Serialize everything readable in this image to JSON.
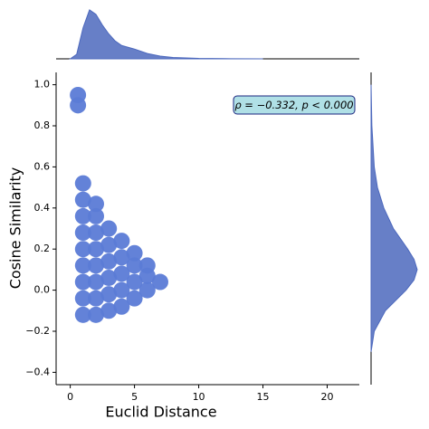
{
  "chart_data": {
    "type": "scatter",
    "xlabel": "Euclid Distance",
    "ylabel": "Cosine Similarity",
    "annotation": "ρ = −0.332, p < 0.000",
    "color": "#5b7bd6",
    "x": [
      1,
      1,
      1,
      1,
      1,
      1,
      1,
      1,
      1,
      2,
      2,
      2,
      2,
      2,
      2,
      2,
      2,
      3,
      3,
      3,
      3,
      3,
      3,
      4,
      4,
      4,
      4,
      4,
      5,
      5,
      5,
      5,
      6,
      6,
      6,
      7,
      0.6,
      0.6
    ],
    "y": [
      -0.12,
      -0.04,
      0.04,
      0.12,
      0.2,
      0.28,
      0.36,
      0.44,
      0.52,
      -0.12,
      -0.04,
      0.04,
      0.12,
      0.2,
      0.28,
      0.36,
      0.42,
      -0.1,
      -0.02,
      0.06,
      0.14,
      0.22,
      0.3,
      -0.08,
      0,
      0.08,
      0.16,
      0.24,
      -0.04,
      0.04,
      0.12,
      0.18,
      0,
      0.07,
      0.12,
      0.04,
      0.9,
      0.95
    ],
    "xlim": [
      -1.1,
      22.5
    ],
    "ylim": [
      -0.46,
      1.06
    ],
    "xticks": [
      0,
      5,
      10,
      15,
      20
    ],
    "yticks": [
      {
        "value": -0.4,
        "label": "−0.4"
      },
      {
        "value": -0.2,
        "label": "−0.2"
      },
      {
        "value": 0,
        "label": "0.0"
      },
      0.2,
      0.4,
      0.6,
      0.8,
      {
        "value": 1,
        "label": "1.0"
      }
    ],
    "marginal_x": {
      "x": [
        0,
        0.5,
        1,
        1.5,
        2,
        2.5,
        3,
        3.5,
        4,
        4.5,
        5,
        6,
        7,
        8,
        10,
        12,
        15
      ],
      "density": [
        0,
        0.05,
        0.35,
        0.55,
        0.5,
        0.38,
        0.28,
        0.2,
        0.15,
        0.13,
        0.11,
        0.06,
        0.03,
        0.015,
        0.005,
        0.002,
        0
      ],
      "lim": [
        0,
        0.58
      ]
    },
    "marginal_y": {
      "y": [
        -0.3,
        -0.2,
        -0.1,
        0,
        0.05,
        0.1,
        0.15,
        0.2,
        0.3,
        0.4,
        0.5,
        0.6,
        0.8,
        1.0
      ],
      "density": [
        0,
        0.2,
        0.9,
        2.2,
        2.7,
        2.9,
        2.7,
        2.3,
        1.4,
        0.8,
        0.4,
        0.2,
        0.05,
        0
      ],
      "lim": [
        0,
        3.3
      ]
    },
    "marginal_color": "#4c68bd"
  }
}
